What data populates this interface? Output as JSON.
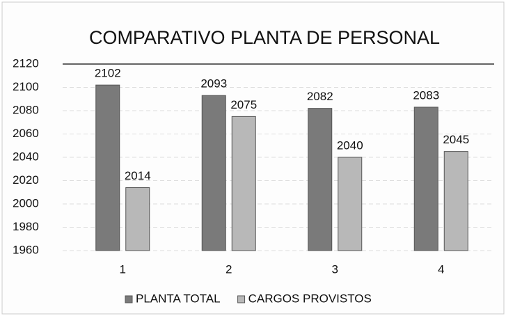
{
  "chart_data": {
    "type": "bar",
    "title": "COMPARATIVO PLANTA DE PERSONAL",
    "categories": [
      "1",
      "2",
      "3",
      "4"
    ],
    "series": [
      {
        "name": "PLANTA TOTAL",
        "color": "#7a7a7a",
        "values": [
          2102,
          2093,
          2082,
          2083
        ]
      },
      {
        "name": "CARGOS PROVISTOS",
        "color": "#b8b8b8",
        "values": [
          2014,
          2075,
          2040,
          2045
        ]
      }
    ],
    "ylim": [
      1960,
      2120
    ],
    "yticks": [
      1960,
      1980,
      2000,
      2020,
      2040,
      2060,
      2080,
      2100,
      2120
    ],
    "grid": true,
    "legend": "bottom"
  }
}
